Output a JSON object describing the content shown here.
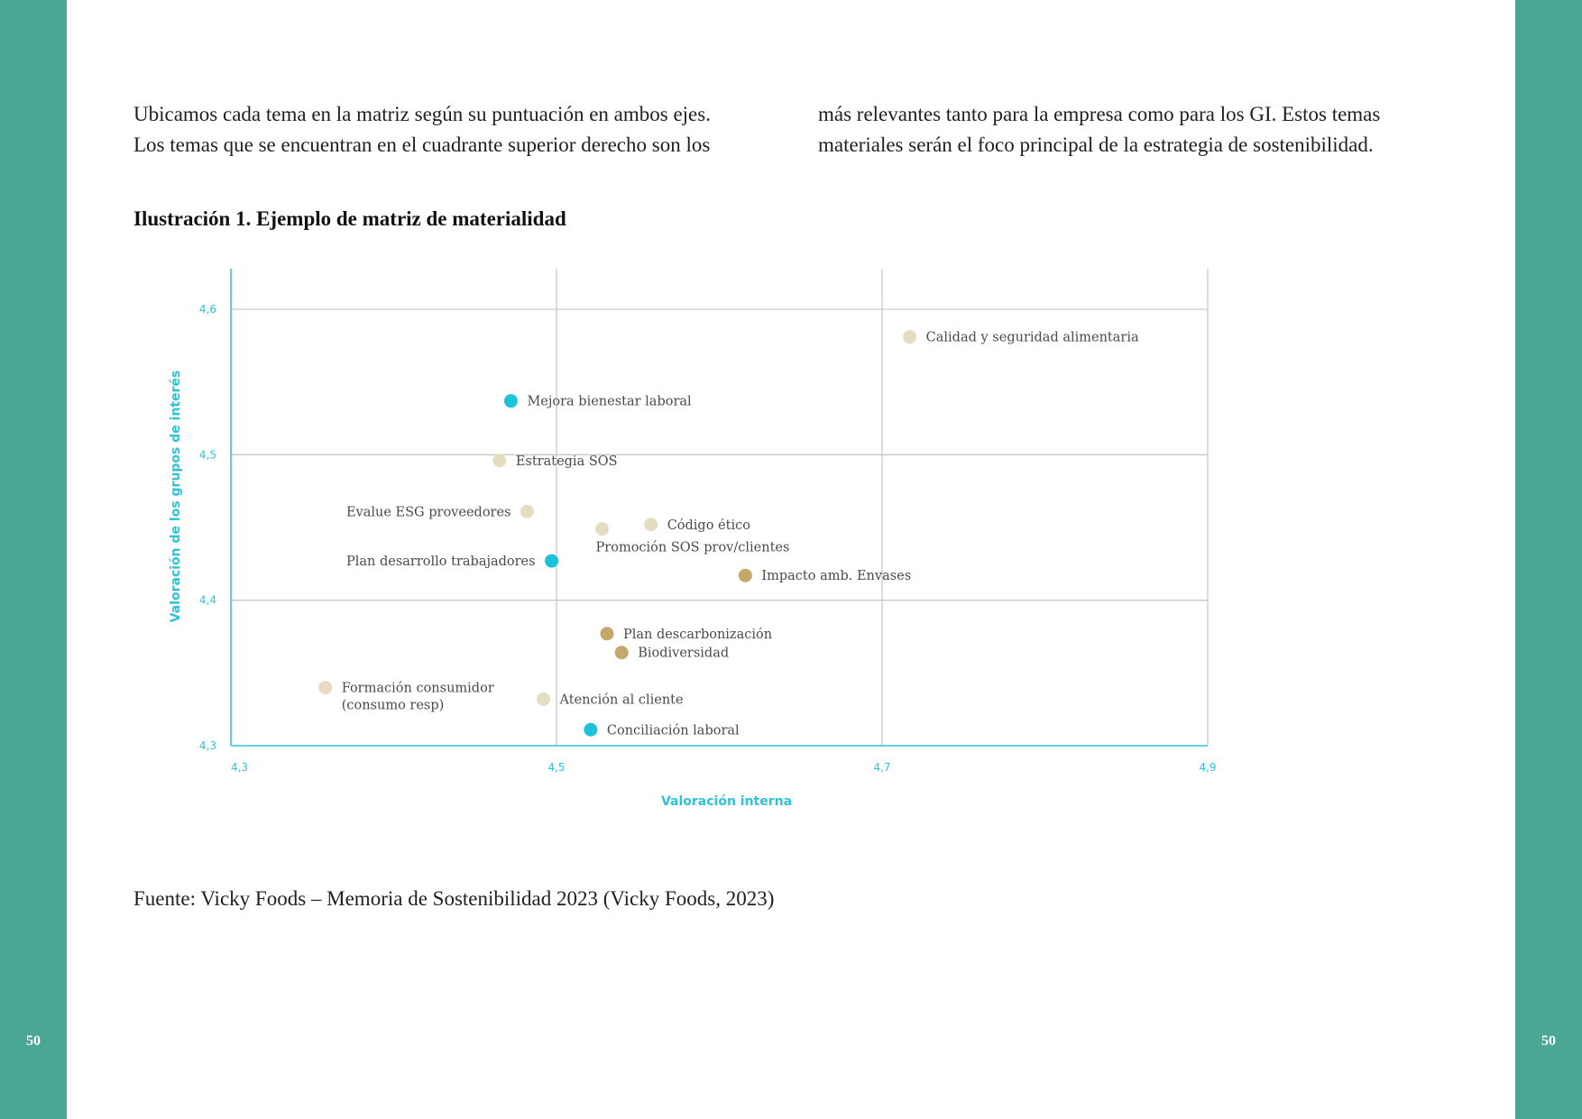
{
  "page": {
    "page_number_left": "50",
    "page_number_right": "50",
    "colors": {
      "band": "#4aa793",
      "axis": "#2ec4d6",
      "grid": "#c9c9c9"
    }
  },
  "body_text": {
    "left_line_1": "Ubicamos cada tema en la matriz según su puntuación en ambos ejes.",
    "left_line_2": "Los temas que se encuentran en el cuadrante superior derecho son los",
    "right_line_1": "más relevantes tanto para la empresa como para los GI. Estos temas",
    "right_line_2": "materiales serán el foco principal de la estrategia de sostenibilidad."
  },
  "figure": {
    "caption": "Ilustración 1. Ejemplo de matriz de materialidad",
    "source": "Fuente: Vicky Foods – Memoria de Sostenibilidad 2023 (Vicky Foods, 2023)"
  },
  "chart_data": {
    "type": "scatter",
    "title": "",
    "xlabel": "Valoración interna",
    "ylabel": "Valoración de los grupos de interés",
    "xlim": [
      4.3,
      4.9
    ],
    "ylim": [
      4.3,
      4.6
    ],
    "x_ticks": [
      4.3,
      4.5,
      4.7,
      4.9
    ],
    "y_ticks": [
      4.3,
      4.4,
      4.5,
      4.6
    ],
    "x_tick_labels": [
      "4,3",
      "4,5",
      "4,7",
      "4,9"
    ],
    "y_tick_labels": [
      "4,3",
      "4,4",
      "4,5",
      "4,6"
    ],
    "grid": true,
    "category_colors": {
      "social": "#1cc3d8",
      "governance": "#e6dcc2",
      "environmental": "#c6a76a"
    },
    "points": [
      {
        "label": "Calidad y seguridad alimentaria",
        "x": 4.717,
        "y": 4.581,
        "category": "governance",
        "label_side": "right"
      },
      {
        "label": "Mejora bienestar laboral",
        "x": 4.472,
        "y": 4.537,
        "category": "social",
        "label_side": "right"
      },
      {
        "label": "Estrategia SOS",
        "x": 4.465,
        "y": 4.496,
        "category": "governance",
        "label_side": "right"
      },
      {
        "label": "Evalue ESG proveedores",
        "x": 4.482,
        "y": 4.461,
        "category": "governance",
        "label_side": "left"
      },
      {
        "label": "Código ético",
        "x": 4.558,
        "y": 4.452,
        "category": "governance",
        "label_side": "right"
      },
      {
        "label": "Promoción SOS prov/clientes",
        "x": 4.528,
        "y": 4.449,
        "category": "governance",
        "label_side": "below"
      },
      {
        "label": "Plan desarrollo trabajadores",
        "x": 4.497,
        "y": 4.427,
        "category": "social",
        "label_side": "left"
      },
      {
        "label": "Impacto amb. Envases",
        "x": 4.616,
        "y": 4.417,
        "category": "environmental",
        "label_side": "right"
      },
      {
        "label": "Plan descarbonización",
        "x": 4.531,
        "y": 4.377,
        "category": "environmental",
        "label_side": "right"
      },
      {
        "label": "Biodiversidad",
        "x": 4.54,
        "y": 4.364,
        "category": "environmental",
        "label_side": "right"
      },
      {
        "label": "Formación consumidor\n(consumo resp)",
        "x": 4.358,
        "y": 4.34,
        "category": "governance",
        "label_side": "right"
      },
      {
        "label": "Atención al cliente",
        "x": 4.492,
        "y": 4.332,
        "category": "governance",
        "label_side": "right"
      },
      {
        "label": "Conciliación laboral",
        "x": 4.521,
        "y": 4.311,
        "category": "social",
        "label_side": "right"
      }
    ]
  }
}
